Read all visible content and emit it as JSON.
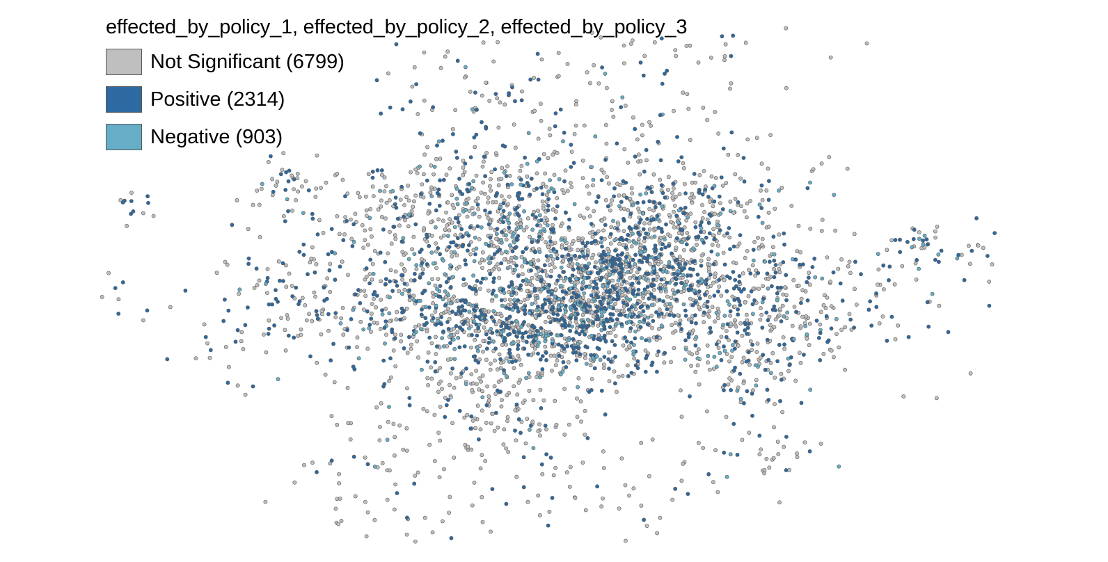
{
  "legend": {
    "title": "effected_by_policy_1, effected_by_policy_2, effected_by_policy_3",
    "items": [
      {
        "label": "Not Significant (6799)",
        "category": "not_significant",
        "count": 6799,
        "color": "#bfbfbf"
      },
      {
        "label": "Positive (2314)",
        "category": "positive",
        "count": 2314,
        "color": "#2e6aa1"
      },
      {
        "label": "Negative (903)",
        "category": "negative",
        "count": 903,
        "color": "#66aec8"
      }
    ]
  },
  "map": {
    "marker_stroke": "#555555",
    "background": "#ffffff"
  }
}
